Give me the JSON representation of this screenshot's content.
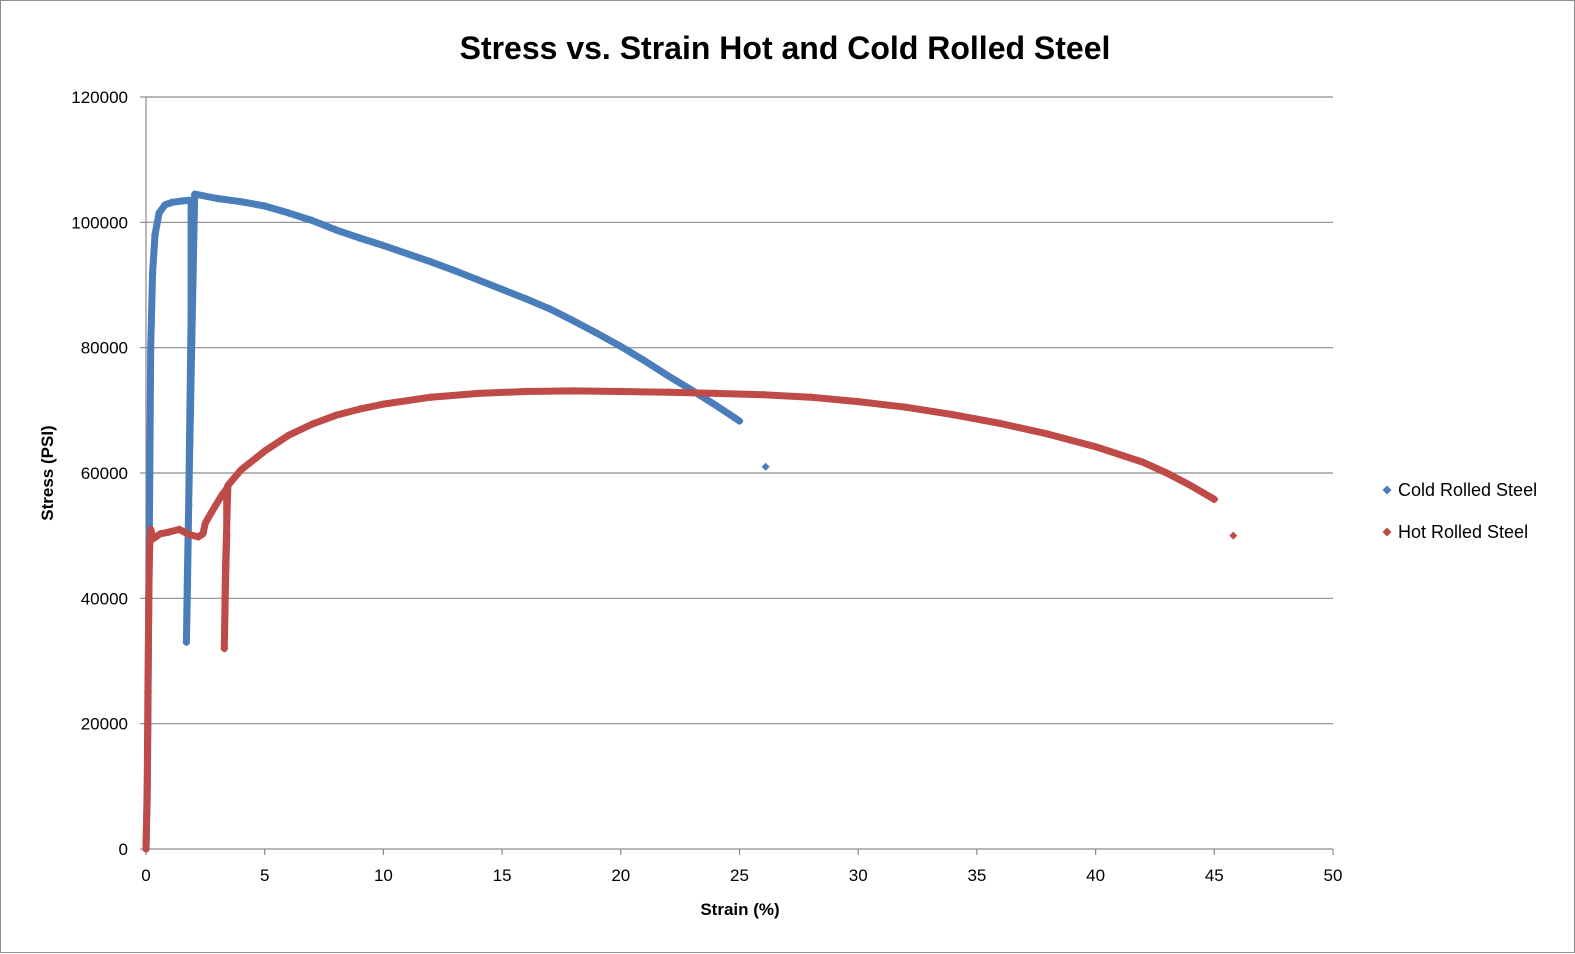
{
  "chart_data": {
    "type": "scatter",
    "title": "Stress vs. Strain Hot and Cold Rolled Steel",
    "xlabel": "Strain (%)",
    "ylabel": "Stress (PSI)",
    "xlim": [
      0,
      50
    ],
    "ylim": [
      0,
      120000
    ],
    "x_ticks": [
      0,
      5,
      10,
      15,
      20,
      25,
      30,
      35,
      40,
      45,
      50
    ],
    "y_ticks": [
      0,
      20000,
      40000,
      60000,
      80000,
      100000,
      120000
    ],
    "grid": "horizontal major gridlines",
    "legend_position": "right",
    "series": [
      {
        "name": "Cold Rolled Steel",
        "color": "#4a7ebb",
        "marker": "diamond",
        "points": [
          [
            0,
            0
          ],
          [
            0.05,
            8000
          ],
          [
            0.08,
            20000
          ],
          [
            0.12,
            40000
          ],
          [
            0.16,
            60000
          ],
          [
            0.2,
            80000
          ],
          [
            0.28,
            92000
          ],
          [
            0.38,
            98000
          ],
          [
            0.55,
            101500
          ],
          [
            0.8,
            102800
          ],
          [
            1.1,
            103200
          ],
          [
            1.5,
            103400
          ],
          [
            1.8,
            103500
          ],
          [
            1.9,
            103500
          ],
          [
            1.9,
            85000
          ],
          [
            1.85,
            70000
          ],
          [
            1.8,
            55000
          ],
          [
            1.75,
            42000
          ],
          [
            1.7,
            33000
          ],
          [
            1.75,
            45000
          ],
          [
            1.85,
            65000
          ],
          [
            1.95,
            85000
          ],
          [
            2.05,
            104500
          ],
          [
            3,
            103800
          ],
          [
            4,
            103300
          ],
          [
            5,
            102600
          ],
          [
            6,
            101500
          ],
          [
            7,
            100300
          ],
          [
            8,
            98800
          ],
          [
            9,
            97500
          ],
          [
            10,
            96300
          ],
          [
            11,
            95000
          ],
          [
            12,
            93700
          ],
          [
            13,
            92300
          ],
          [
            14,
            90800
          ],
          [
            15,
            89300
          ],
          [
            16,
            87800
          ],
          [
            17,
            86200
          ],
          [
            18,
            84300
          ],
          [
            19,
            82300
          ],
          [
            20,
            80200
          ],
          [
            21,
            77900
          ],
          [
            22,
            75500
          ],
          [
            23,
            73200
          ],
          [
            24,
            70800
          ],
          [
            25,
            68300
          ],
          [
            26.1,
            61000
          ]
        ]
      },
      {
        "name": "Hot Rolled Steel",
        "color": "#be4b48",
        "marker": "diamond",
        "points": [
          [
            0,
            0
          ],
          [
            0.05,
            10000
          ],
          [
            0.08,
            25000
          ],
          [
            0.12,
            40000
          ],
          [
            0.15,
            48000
          ],
          [
            0.2,
            51000
          ],
          [
            0.3,
            49500
          ],
          [
            0.6,
            50300
          ],
          [
            1,
            50600
          ],
          [
            1.4,
            51000
          ],
          [
            1.8,
            50200
          ],
          [
            2.2,
            49800
          ],
          [
            2.4,
            50300
          ],
          [
            2.5,
            52000
          ],
          [
            2.8,
            54000
          ],
          [
            3.2,
            56500
          ],
          [
            3.4,
            57500
          ],
          [
            3.4,
            50000
          ],
          [
            3.35,
            42000
          ],
          [
            3.3,
            32000
          ],
          [
            3.35,
            45000
          ],
          [
            3.45,
            58000
          ],
          [
            4,
            60500
          ],
          [
            5,
            63500
          ],
          [
            6,
            66000
          ],
          [
            7,
            67800
          ],
          [
            8,
            69200
          ],
          [
            9,
            70200
          ],
          [
            10,
            71000
          ],
          [
            12,
            72100
          ],
          [
            14,
            72700
          ],
          [
            16,
            73000
          ],
          [
            18,
            73100
          ],
          [
            20,
            73000
          ],
          [
            22,
            72900
          ],
          [
            24,
            72700
          ],
          [
            26,
            72500
          ],
          [
            28,
            72100
          ],
          [
            30,
            71400
          ],
          [
            32,
            70500
          ],
          [
            34,
            69300
          ],
          [
            36,
            67900
          ],
          [
            38,
            66200
          ],
          [
            40,
            64200
          ],
          [
            42,
            61700
          ],
          [
            43,
            60000
          ],
          [
            44,
            58000
          ],
          [
            45,
            55800
          ],
          [
            45.8,
            50000
          ]
        ]
      }
    ]
  }
}
